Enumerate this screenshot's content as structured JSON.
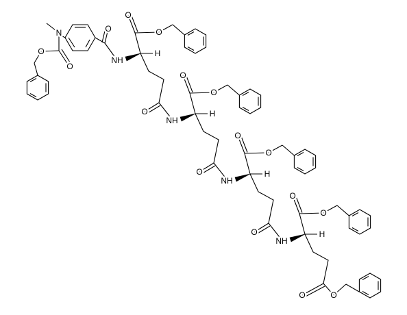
{
  "atoms": [
    "N",
    "O",
    "O",
    "O",
    "NH",
    "H",
    "O",
    "O",
    "O",
    "NH",
    "H",
    "O",
    "O",
    "O",
    "NH",
    "H",
    "O",
    "O",
    "O",
    "NH",
    "H",
    "O",
    "O",
    "O",
    "O"
  ]
}
